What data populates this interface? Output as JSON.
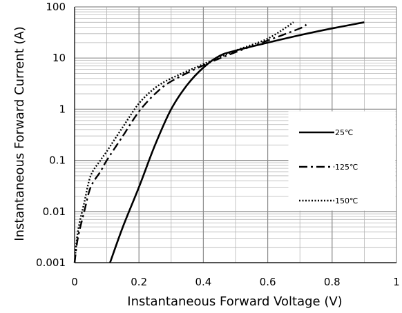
{
  "chart_data": {
    "type": "line",
    "title": "",
    "xlabel": "Instantaneous Forward Voltage (V)",
    "ylabel": "Instantaneous Forward Current (A)",
    "xlim": [
      0,
      1
    ],
    "ylim": [
      0.001,
      100
    ],
    "y_scale": "log",
    "grid": true,
    "legend_position": "right",
    "x_ticks": [
      "0",
      "0.2",
      "0.4",
      "0.6",
      "0.8",
      "1"
    ],
    "x_tick_values": [
      0,
      0.2,
      0.4,
      0.6,
      0.8,
      1
    ],
    "y_ticks": [
      "0.001",
      "0.01",
      "0.1",
      "1",
      "10",
      "100"
    ],
    "y_tick_values": [
      0.001,
      0.01,
      0.1,
      1,
      10,
      100
    ],
    "series": [
      {
        "name": "25℃",
        "line_style": "solid",
        "x": [
          0.11,
          0.15,
          0.2,
          0.25,
          0.3,
          0.35,
          0.4,
          0.45,
          0.5,
          0.6,
          0.7,
          0.8,
          0.9
        ],
        "y": [
          0.001,
          0.005,
          0.03,
          0.2,
          1,
          3,
          6.5,
          11,
          14,
          20,
          28,
          38,
          50
        ]
      },
      {
        "name": "125℃",
        "line_style": "dash-dot",
        "x": [
          0.0,
          0.01,
          0.03,
          0.05,
          0.08,
          0.1,
          0.15,
          0.2,
          0.25,
          0.3,
          0.4,
          0.5,
          0.6,
          0.7,
          0.72
        ],
        "y": [
          0.001,
          0.003,
          0.01,
          0.03,
          0.06,
          0.1,
          0.3,
          0.9,
          2.0,
          3.5,
          7.2,
          13,
          22,
          38,
          45
        ]
      },
      {
        "name": "150℃",
        "line_style": "dotted",
        "x": [
          0.0,
          0.01,
          0.03,
          0.05,
          0.08,
          0.1,
          0.15,
          0.2,
          0.25,
          0.3,
          0.4,
          0.5,
          0.6,
          0.68
        ],
        "y": [
          0.001,
          0.004,
          0.015,
          0.05,
          0.1,
          0.15,
          0.45,
          1.3,
          2.6,
          4.0,
          7.6,
          14,
          24,
          50
        ]
      }
    ]
  }
}
